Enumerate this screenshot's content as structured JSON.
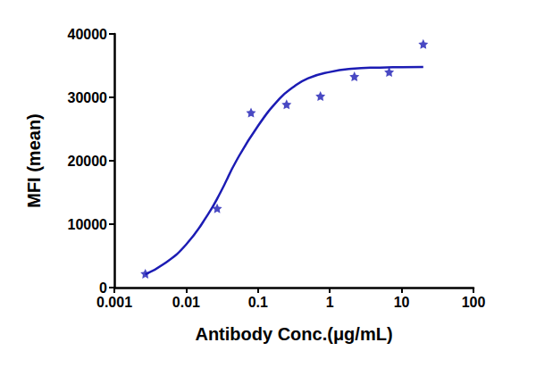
{
  "chart_data": {
    "type": "scatter",
    "x_label": "Antibody Conc.(μg/mL)",
    "y_label": "MFI (mean)",
    "log": "x",
    "grid": false,
    "xlim": [
      0.001,
      100
    ],
    "xticks": [
      0.001,
      0.01,
      0.1,
      1,
      10,
      100
    ],
    "ylim": [
      0,
      40000
    ],
    "yticks": [
      0,
      10000,
      20000,
      30000,
      40000
    ],
    "series": [
      {
        "type": "scatter",
        "marker": "star",
        "color": "#1c1cb4",
        "x": [
          0.0027,
          0.027,
          0.08,
          0.25,
          0.74,
          2.2,
          6.7,
          20
        ],
        "values": [
          2200,
          12500,
          27600,
          28900,
          30200,
          33300,
          34000,
          38400
        ]
      },
      {
        "type": "line",
        "line_style": "solid",
        "color": "#1c1cb4",
        "x": [
          0.0027,
          0.005,
          0.01,
          0.02,
          0.03,
          0.05,
          0.1,
          0.2,
          0.3,
          0.5,
          1,
          2,
          5,
          10,
          20
        ],
        "values": [
          2100,
          3800,
          6800,
          11500,
          15000,
          20000,
          25500,
          29800,
          31500,
          33000,
          34000,
          34500,
          34700,
          34750,
          34800
        ]
      }
    ]
  }
}
